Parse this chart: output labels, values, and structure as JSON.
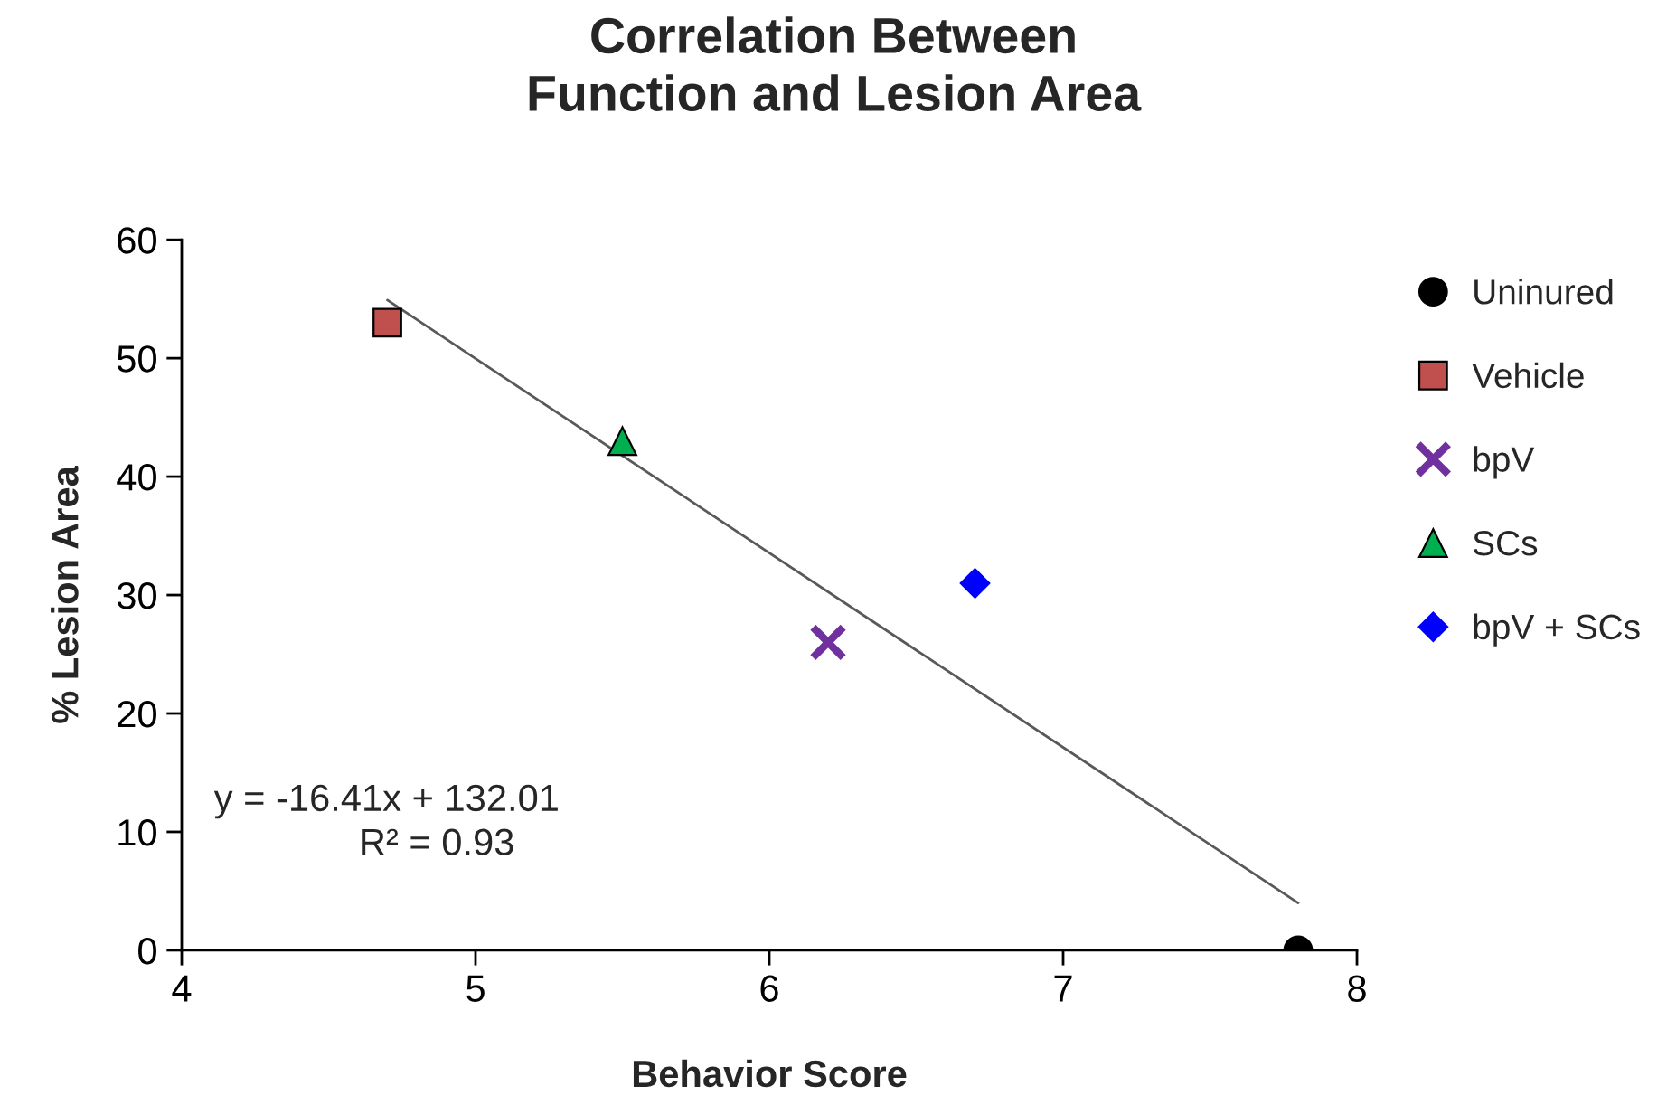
{
  "chart_data": {
    "type": "scatter",
    "title": "Correlation Between\nFunction and Lesion Area",
    "xlabel": "Behavior Score",
    "ylabel": "% Lesion Area",
    "xlim": [
      4,
      8
    ],
    "xticks": [
      4,
      5,
      6,
      7,
      8
    ],
    "ylim": [
      0,
      60
    ],
    "yticks": [
      0,
      10,
      20,
      30,
      40,
      50,
      60
    ],
    "grid": false,
    "legend": "right",
    "series": [
      {
        "name": "Uninured",
        "color": "#000000",
        "marker": "circle",
        "x": [
          7.8
        ],
        "values": [
          0
        ]
      },
      {
        "name": "Vehicle",
        "color": "#c0504d",
        "marker": "square",
        "x": [
          4.7
        ],
        "values": [
          53
        ]
      },
      {
        "name": "bpV",
        "color": "#7030a0",
        "marker": "cross",
        "x": [
          6.2
        ],
        "values": [
          26
        ]
      },
      {
        "name": "SCs",
        "color": "#00b050",
        "marker": "triangle",
        "x": [
          5.5
        ],
        "values": [
          43
        ]
      },
      {
        "name": "bpV + SCs",
        "color": "#0000ff",
        "marker": "diamond",
        "x": [
          6.7
        ],
        "values": [
          31
        ]
      },
      {
        "type": "line",
        "color": "#595959",
        "x": [
          4.7,
          7.8
        ],
        "values": [
          54.9,
          4
        ]
      }
    ],
    "annotations": [
      "y = -16.41x + 132.01",
      "R² = 0.93"
    ]
  }
}
